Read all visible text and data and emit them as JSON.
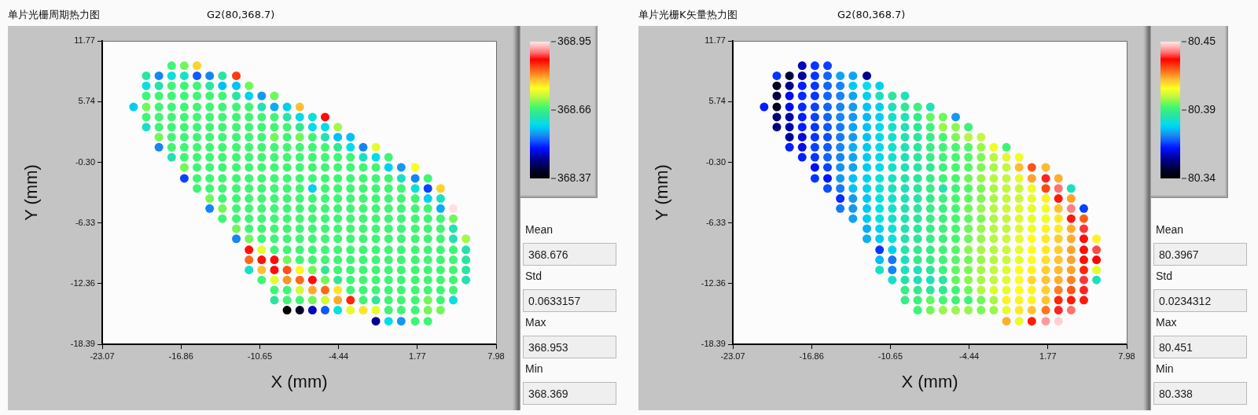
{
  "chart_data": [
    {
      "type": "scatter",
      "title": "单片光栅周期热力图",
      "subtitle": "G2(80,368.7)",
      "xlabel": "X (mm)",
      "ylabel": "Y (mm)",
      "xlim": [
        -23.07,
        7.98
      ],
      "xticks": [
        -23.07,
        -16.86,
        -10.65,
        -4.44,
        1.77,
        7.98
      ],
      "ylim": [
        -18.39,
        11.77
      ],
      "yticks": [
        -18.39,
        -12.36,
        -6.33,
        {
          "value": -0.3,
          "label": "-0.30"
        },
        5.74,
        11.77
      ],
      "clim": [
        368.369,
        368.953
      ],
      "cticks": [
        {
          "value": 368.369,
          "label": "368.37"
        },
        {
          "value": 368.661,
          "label": "368.66"
        },
        {
          "value": 368.953,
          "label": "368.95"
        }
      ],
      "marker": "circle",
      "annotations": [
        "Mean",
        "368.676",
        "Std",
        "0.0633157",
        "Max",
        "368.953",
        "Min",
        "368.369"
      ],
      "x": [
        -17.6,
        -16.6,
        -15.6,
        -19.6,
        -18.6,
        -17.6,
        -16.6,
        -15.6,
        -14.6,
        -13.6,
        -12.5,
        -19.6,
        -18.6,
        -17.6,
        -16.6,
        -15.6,
        -14.6,
        -13.6,
        -12.5,
        -11.5,
        -19.6,
        -18.6,
        -17.6,
        -16.6,
        -15.6,
        -14.6,
        -13.6,
        -12.5,
        -11.5,
        -10.5,
        -9.5,
        -20.6,
        -19.6,
        -18.6,
        -17.6,
        -16.6,
        -15.6,
        -14.6,
        -13.6,
        -12.5,
        -11.5,
        -10.5,
        -9.5,
        -8.5,
        -7.5,
        -19.6,
        -18.6,
        -17.6,
        -16.6,
        -15.6,
        -14.6,
        -13.6,
        -12.5,
        -11.5,
        -10.5,
        -9.5,
        -8.5,
        -7.5,
        -6.5,
        -5.5,
        -19.6,
        -18.6,
        -17.6,
        -16.6,
        -15.6,
        -14.6,
        -13.6,
        -12.5,
        -11.5,
        -10.5,
        -9.5,
        -8.5,
        -7.5,
        -6.5,
        -5.5,
        -4.5,
        -18.6,
        -17.6,
        -16.6,
        -15.6,
        -14.6,
        -13.6,
        -12.5,
        -11.5,
        -10.5,
        -9.5,
        -8.5,
        -7.5,
        -6.5,
        -5.5,
        -4.5,
        -3.5,
        -18.6,
        -17.6,
        -16.6,
        -15.6,
        -14.6,
        -13.6,
        -12.5,
        -11.5,
        -10.5,
        -9.5,
        -8.5,
        -7.5,
        -6.5,
        -5.5,
        -4.5,
        -3.5,
        -2.5,
        -1.5,
        -17.6,
        -16.6,
        -15.6,
        -14.6,
        -13.6,
        -12.5,
        -11.5,
        -10.5,
        -9.5,
        -8.5,
        -7.5,
        -6.5,
        -5.5,
        -4.5,
        -3.5,
        -2.5,
        -1.5,
        -0.5,
        -16.6,
        -15.6,
        -14.6,
        -13.6,
        -12.5,
        -11.5,
        -10.5,
        -9.5,
        -8.5,
        -7.5,
        -6.5,
        -5.5,
        -4.5,
        -3.5,
        -2.5,
        -1.5,
        -0.5,
        0.5,
        1.6,
        -16.6,
        -15.6,
        -14.6,
        -13.6,
        -12.5,
        -11.5,
        -10.5,
        -9.5,
        -8.5,
        -7.5,
        -6.5,
        -5.5,
        -4.5,
        -3.5,
        -2.5,
        -1.5,
        -0.5,
        0.5,
        1.6,
        2.6,
        -15.6,
        -14.6,
        -13.6,
        -12.5,
        -11.5,
        -10.5,
        -9.5,
        -8.5,
        -7.5,
        -6.5,
        -5.5,
        -4.5,
        -3.5,
        -2.5,
        -1.5,
        -0.5,
        0.5,
        1.6,
        2.6,
        3.6,
        -14.6,
        -13.6,
        -12.5,
        -11.5,
        -10.5,
        -9.5,
        -8.5,
        -7.5,
        -6.5,
        -5.5,
        -4.5,
        -3.5,
        -2.5,
        -1.5,
        -0.5,
        0.5,
        1.6,
        2.6,
        3.6,
        -14.6,
        -13.6,
        -12.5,
        -11.5,
        -10.5,
        -9.5,
        -8.5,
        -7.5,
        -6.5,
        -5.5,
        -4.5,
        -3.5,
        -2.5,
        -1.5,
        -0.5,
        0.5,
        1.6,
        2.6,
        3.6,
        4.6,
        -13.6,
        -12.5,
        -11.5,
        -10.5,
        -9.5,
        -8.5,
        -7.5,
        -6.5,
        -5.5,
        -4.5,
        -3.5,
        -2.5,
        -1.5,
        -0.5,
        0.5,
        1.6,
        2.6,
        3.6,
        4.6,
        -12.5,
        -11.5,
        -10.5,
        -9.5,
        -8.5,
        -7.5,
        -6.5,
        -5.5,
        -4.5,
        -3.5,
        -2.5,
        -1.5,
        -0.5,
        0.5,
        1.6,
        2.6,
        3.6,
        4.6,
        -12.5,
        -11.5,
        -10.5,
        -9.5,
        -8.5,
        -7.5,
        -6.5,
        -5.5,
        -4.5,
        -3.5,
        -2.5,
        -1.5,
        -0.5,
        0.5,
        1.6,
        2.6,
        3.6,
        4.6,
        5.6,
        -11.5,
        -10.5,
        -9.5,
        -8.5,
        -7.5,
        -6.5,
        -5.5,
        -4.5,
        -3.5,
        -2.5,
        -1.5,
        -0.5,
        0.5,
        1.6,
        2.6,
        3.6,
        4.6,
        5.6,
        -11.5,
        -10.5,
        -9.5,
        -8.5,
        -7.5,
        -6.5,
        -5.5,
        -4.5,
        -3.5,
        -2.5,
        -1.5,
        -0.5,
        0.5,
        1.6,
        2.6,
        3.6,
        4.6,
        5.6,
        -11.5,
        -10.5,
        -9.5,
        -8.5,
        -7.5,
        -6.5,
        -5.5,
        -4.5,
        -3.5,
        -2.5,
        -1.5,
        -0.5,
        0.5,
        1.6,
        2.6,
        3.6,
        4.6,
        5.6,
        -10.5,
        -9.5,
        -8.5,
        -7.5,
        -6.5,
        -5.5,
        -4.5,
        -3.5,
        -2.5,
        -1.5,
        -0.5,
        0.5,
        1.6,
        2.6,
        3.6,
        4.6,
        5.6,
        -9.5,
        -8.5,
        -7.5,
        -6.5,
        -5.5,
        -4.5,
        -3.5,
        -2.5,
        -1.5,
        -0.5,
        0.5,
        1.6,
        2.6,
        3.6,
        4.6,
        -9.5,
        -8.5,
        -7.5,
        -6.5,
        -5.5,
        -4.5,
        -3.5,
        -2.5,
        -1.5,
        -0.5,
        0.5,
        1.6,
        2.6,
        3.6,
        4.6,
        -8.5,
        -7.5,
        -6.5,
        -5.5,
        -4.5,
        -3.5,
        -2.5,
        -1.5,
        -0.5,
        0.5,
        1.6,
        2.6,
        3.6,
        -1.5,
        -0.5,
        0.5,
        1.6,
        2.6
      ],
      "values": [
        9.3,
        9.3,
        9.3,
        8.3,
        8.3,
        8.3,
        8.3,
        8.3,
        8.3,
        8.3,
        8.3,
        7.3,
        7.3,
        7.3,
        7.3,
        7.3,
        7.3,
        7.3,
        7.3,
        7.3,
        6.3,
        6.3,
        6.3,
        6.3,
        6.3,
        6.3,
        6.3,
        6.3,
        6.3,
        6.3,
        6.3,
        5.2,
        5.2,
        5.2,
        5.2,
        5.2,
        5.2,
        5.2,
        5.2,
        5.2,
        5.2,
        5.2,
        5.2,
        5.2,
        5.2,
        4.2,
        4.2,
        4.2,
        4.2,
        4.2,
        4.2,
        4.2,
        4.2,
        4.2,
        4.2,
        4.2,
        4.2,
        4.2,
        4.2,
        4.2,
        3.2,
        3.2,
        3.2,
        3.2,
        3.2,
        3.2,
        3.2,
        3.2,
        3.2,
        3.2,
        3.2,
        3.2,
        3.2,
        3.2,
        3.2,
        3.2,
        2.2,
        2.2,
        2.2,
        2.2,
        2.2,
        2.2,
        2.2,
        2.2,
        2.2,
        2.2,
        2.2,
        2.2,
        2.2,
        2.2,
        2.2,
        2.2,
        1.2,
        1.2,
        1.2,
        1.2,
        1.2,
        1.2,
        1.2,
        1.2,
        1.2,
        1.2,
        1.2,
        1.2,
        1.2,
        1.2,
        1.2,
        1.2,
        1.2,
        1.2,
        0.2,
        0.2,
        0.2,
        0.2,
        0.2,
        0.2,
        0.2,
        0.2,
        0.2,
        0.2,
        0.2,
        0.2,
        0.2,
        0.2,
        0.2,
        0.2,
        0.2,
        0.2,
        -0.8,
        -0.8,
        -0.8,
        -0.8,
        -0.8,
        -0.8,
        -0.8,
        -0.8,
        -0.8,
        -0.8,
        -0.8,
        -0.8,
        -0.8,
        -0.8,
        -0.8,
        -0.8,
        -0.8,
        -0.8,
        -0.8,
        -1.9,
        -1.9,
        -1.9,
        -1.9,
        -1.9,
        -1.9,
        -1.9,
        -1.9,
        -1.9,
        -1.9,
        -1.9,
        -1.9,
        -1.9,
        -1.9,
        -1.9,
        -1.9,
        -1.9,
        -1.9,
        -1.9,
        -1.9,
        -2.9,
        -2.9,
        -2.9,
        -2.9,
        -2.9,
        -2.9,
        -2.9,
        -2.9,
        -2.9,
        -2.9,
        -2.9,
        -2.9,
        -2.9,
        -2.9,
        -2.9,
        -2.9,
        -2.9,
        -2.9,
        -2.9,
        -2.9,
        -3.9,
        -3.9,
        -3.9,
        -3.9,
        -3.9,
        -3.9,
        -3.9,
        -3.9,
        -3.9,
        -3.9,
        -3.9,
        -3.9,
        -3.9,
        -3.9,
        -3.9,
        -3.9,
        -3.9,
        -3.9,
        -3.9,
        -4.9,
        -4.9,
        -4.9,
        -4.9,
        -4.9,
        -4.9,
        -4.9,
        -4.9,
        -4.9,
        -4.9,
        -4.9,
        -4.9,
        -4.9,
        -4.9,
        -4.9,
        -4.9,
        -4.9,
        -4.9,
        -4.9,
        -4.9,
        -5.9,
        -5.9,
        -5.9,
        -5.9,
        -5.9,
        -5.9,
        -5.9,
        -5.9,
        -5.9,
        -5.9,
        -5.9,
        -5.9,
        -5.9,
        -5.9,
        -5.9,
        -5.9,
        -5.9,
        -5.9,
        -5.9,
        -6.9,
        -6.9,
        -6.9,
        -6.9,
        -6.9,
        -6.9,
        -6.9,
        -6.9,
        -6.9,
        -6.9,
        -6.9,
        -6.9,
        -6.9,
        -6.9,
        -6.9,
        -6.9,
        -6.9,
        -6.9,
        -7.9,
        -7.9,
        -7.9,
        -7.9,
        -7.9,
        -7.9,
        -7.9,
        -7.9,
        -7.9,
        -7.9,
        -7.9,
        -7.9,
        -7.9,
        -7.9,
        -7.9,
        -7.9,
        -7.9,
        -7.9,
        -7.9,
        -9.0,
        -9.0,
        -9.0,
        -9.0,
        -9.0,
        -9.0,
        -9.0,
        -9.0,
        -9.0,
        -9.0,
        -9.0,
        -9.0,
        -9.0,
        -9.0,
        -9.0,
        -9.0,
        -9.0,
        -9.0,
        -10.0,
        -10.0,
        -10.0,
        -10.0,
        -10.0,
        -10.0,
        -10.0,
        -10.0,
        -10.0,
        -10.0,
        -10.0,
        -10.0,
        -10.0,
        -10.0,
        -10.0,
        -10.0,
        -10.0,
        -10.0,
        -11.0,
        -11.0,
        -11.0,
        -11.0,
        -11.0,
        -11.0,
        -11.0,
        -11.0,
        -11.0,
        -11.0,
        -11.0,
        -11.0,
        -11.0,
        -11.0,
        -11.0,
        -11.0,
        -11.0,
        -11.0,
        -12.0,
        -12.0,
        -12.0,
        -12.0,
        -12.0,
        -12.0,
        -12.0,
        -12.0,
        -12.0,
        -12.0,
        -12.0,
        -12.0,
        -12.0,
        -12.0,
        -12.0,
        -12.0,
        -12.0,
        -13.0,
        -13.0,
        -13.0,
        -13.0,
        -13.0,
        -13.0,
        -13.0,
        -13.0,
        -13.0,
        -13.0,
        -13.0,
        -13.0,
        -13.0,
        -13.0,
        -13.0,
        -14.0,
        -14.0,
        -14.0,
        -14.0,
        -14.0,
        -14.0,
        -14.0,
        -14.0,
        -14.0,
        -14.0,
        -14.0,
        -14.0,
        -14.0,
        -14.0,
        -14.0,
        -15.0,
        -15.0,
        -15.0,
        -15.0,
        -15.0,
        -15.0,
        -15.0,
        -15.0,
        -15.0,
        -15.0,
        -15.0,
        -15.0,
        -15.0,
        -16.1,
        -16.1,
        -16.1,
        -16.1,
        -16.1
      ],
      "cvalues": [
        368.67,
        368.69,
        368.78,
        368.64,
        368.55,
        368.61,
        368.62,
        368.53,
        368.55,
        368.64,
        368.85,
        368.61,
        368.63,
        368.67,
        368.67,
        368.67,
        368.64,
        368.58,
        368.58,
        368.69,
        368.67,
        368.67,
        368.67,
        368.67,
        368.67,
        368.67,
        368.67,
        368.64,
        368.59,
        368.56,
        368.69,
        368.59,
        368.69,
        368.67,
        368.67,
        368.67,
        368.67,
        368.67,
        368.67,
        368.67,
        368.67,
        368.63,
        368.57,
        368.59,
        368.79,
        368.67,
        368.67,
        368.67,
        368.67,
        368.67,
        368.67,
        368.67,
        368.67,
        368.67,
        368.67,
        368.67,
        368.64,
        368.6,
        368.61,
        368.88,
        368.62,
        368.67,
        368.67,
        368.67,
        368.67,
        368.67,
        368.67,
        368.67,
        368.67,
        368.67,
        368.67,
        368.67,
        368.65,
        368.6,
        368.6,
        368.71,
        368.69,
        368.67,
        368.67,
        368.67,
        368.67,
        368.67,
        368.67,
        368.67,
        368.67,
        368.69,
        368.67,
        368.69,
        368.67,
        368.63,
        368.58,
        368.58,
        368.55,
        368.67,
        368.67,
        368.67,
        368.67,
        368.67,
        368.67,
        368.67,
        368.67,
        368.67,
        368.67,
        368.67,
        368.67,
        368.67,
        368.65,
        368.6,
        368.55,
        368.74,
        368.63,
        368.67,
        368.67,
        368.67,
        368.67,
        368.67,
        368.67,
        368.67,
        368.67,
        368.67,
        368.67,
        368.67,
        368.67,
        368.67,
        368.67,
        368.62,
        368.6,
        368.67,
        368.69,
        368.67,
        368.67,
        368.67,
        368.67,
        368.67,
        368.67,
        368.67,
        368.67,
        368.67,
        368.67,
        368.67,
        368.67,
        368.67,
        368.67,
        368.67,
        368.59,
        368.56,
        368.75,
        368.52,
        368.67,
        368.67,
        368.67,
        368.67,
        368.67,
        368.67,
        368.67,
        368.67,
        368.67,
        368.67,
        368.67,
        368.67,
        368.67,
        368.67,
        368.67,
        368.67,
        368.62,
        368.55,
        368.67,
        368.67,
        368.67,
        368.67,
        368.67,
        368.67,
        368.67,
        368.67,
        368.67,
        368.67,
        368.59,
        368.67,
        368.67,
        368.67,
        368.67,
        368.67,
        368.67,
        368.67,
        368.61,
        368.52,
        368.78,
        368.69,
        368.67,
        368.67,
        368.67,
        368.67,
        368.67,
        368.67,
        368.67,
        368.67,
        368.67,
        368.67,
        368.67,
        368.67,
        368.67,
        368.67,
        368.67,
        368.67,
        368.59,
        368.62,
        368.55,
        368.69,
        368.67,
        368.67,
        368.67,
        368.67,
        368.67,
        368.67,
        368.67,
        368.67,
        368.67,
        368.67,
        368.67,
        368.67,
        368.67,
        368.67,
        368.67,
        368.67,
        368.57,
        368.95,
        368.67,
        368.67,
        368.67,
        368.67,
        368.67,
        368.67,
        368.67,
        368.67,
        368.67,
        368.67,
        368.67,
        368.67,
        368.67,
        368.67,
        368.67,
        368.67,
        368.67,
        368.67,
        368.69,
        368.69,
        368.67,
        368.67,
        368.67,
        368.67,
        368.67,
        368.67,
        368.67,
        368.67,
        368.67,
        368.67,
        368.67,
        368.67,
        368.67,
        368.67,
        368.67,
        368.67,
        368.63,
        368.55,
        368.69,
        368.67,
        368.67,
        368.67,
        368.67,
        368.67,
        368.67,
        368.67,
        368.67,
        368.67,
        368.67,
        368.67,
        368.67,
        368.67,
        368.67,
        368.67,
        368.63,
        368.71,
        368.87,
        368.74,
        368.67,
        368.67,
        368.67,
        368.67,
        368.67,
        368.67,
        368.67,
        368.67,
        368.67,
        368.67,
        368.67,
        368.67,
        368.67,
        368.67,
        368.67,
        368.63,
        368.83,
        368.87,
        368.88,
        368.69,
        368.67,
        368.67,
        368.67,
        368.67,
        368.67,
        368.67,
        368.67,
        368.67,
        368.67,
        368.67,
        368.67,
        368.67,
        368.67,
        368.64,
        368.62,
        368.79,
        368.88,
        368.84,
        368.76,
        368.69,
        368.65,
        368.67,
        368.67,
        368.67,
        368.67,
        368.67,
        368.67,
        368.67,
        368.67,
        368.67,
        368.67,
        368.64,
        368.67,
        368.74,
        368.81,
        368.83,
        368.88,
        368.69,
        368.65,
        368.67,
        368.67,
        368.67,
        368.67,
        368.67,
        368.67,
        368.67,
        368.67,
        368.67,
        368.63,
        368.67,
        368.67,
        368.73,
        368.8,
        368.83,
        368.77,
        368.67,
        368.67,
        368.67,
        368.67,
        368.67,
        368.67,
        368.67,
        368.67,
        368.67,
        368.64,
        368.67,
        368.67,
        368.69,
        368.73,
        368.8,
        368.86,
        368.67,
        368.65,
        368.67,
        368.67,
        368.67,
        368.69,
        368.67,
        368.61,
        368.37,
        368.4,
        368.47,
        368.53,
        368.61,
        368.74,
        368.77,
        368.74,
        368.67,
        368.67,
        368.67,
        368.69,
        368.69,
        368.45,
        368.6,
        368.56,
        368.67,
        368.67
      ]
    },
    {
      "type": "scatter",
      "title": "单片光栅K矢量热力图",
      "subtitle": "G2(80,368.7)",
      "xlabel": "X (mm)",
      "ylabel": "Y (mm)",
      "xlim": [
        -23.07,
        7.98
      ],
      "xticks": [
        -23.07,
        -16.86,
        -10.65,
        -4.44,
        1.77,
        7.98
      ],
      "ylim": [
        -18.39,
        11.77
      ],
      "yticks": [
        -18.39,
        -12.36,
        -6.33,
        {
          "value": -0.3,
          "label": "-0.30"
        },
        5.74,
        11.77
      ],
      "clim": [
        80.338,
        80.451
      ],
      "cticks": [
        {
          "value": 80.338,
          "label": "80.34"
        },
        {
          "value": 80.3945,
          "label": "80.39"
        },
        {
          "value": 80.451,
          "label": "80.45"
        }
      ],
      "marker": "circle",
      "annotations": [
        "Mean",
        "80.3967",
        "Std",
        "0.0234312",
        "Max",
        "80.451",
        "Min",
        "80.338"
      ],
      "x": [
        -17.6,
        -16.6,
        -15.6,
        -19.6,
        -18.6,
        -17.6,
        -16.6,
        -15.6,
        -14.6,
        -13.6,
        -12.5,
        -19.6,
        -18.6,
        -17.6,
        -16.6,
        -15.6,
        -14.6,
        -13.6,
        -12.5,
        -11.5,
        -19.6,
        -18.6,
        -17.6,
        -16.6,
        -15.6,
        -14.6,
        -13.6,
        -12.5,
        -11.5,
        -10.5,
        -9.5,
        -20.6,
        -19.6,
        -18.6,
        -17.6,
        -16.6,
        -15.6,
        -14.6,
        -13.6,
        -12.5,
        -11.5,
        -10.5,
        -9.5,
        -8.5,
        -7.5,
        -19.6,
        -18.6,
        -17.6,
        -16.6,
        -15.6,
        -14.6,
        -13.6,
        -12.5,
        -11.5,
        -10.5,
        -9.5,
        -8.5,
        -7.5,
        -6.5,
        -5.5,
        -19.6,
        -18.6,
        -17.6,
        -16.6,
        -15.6,
        -14.6,
        -13.6,
        -12.5,
        -11.5,
        -10.5,
        -9.5,
        -8.5,
        -7.5,
        -6.5,
        -5.5,
        -4.5,
        -18.6,
        -17.6,
        -16.6,
        -15.6,
        -14.6,
        -13.6,
        -12.5,
        -11.5,
        -10.5,
        -9.5,
        -8.5,
        -7.5,
        -6.5,
        -5.5,
        -4.5,
        -3.5,
        -18.6,
        -17.6,
        -16.6,
        -15.6,
        -14.6,
        -13.6,
        -12.5,
        -11.5,
        -10.5,
        -9.5,
        -8.5,
        -7.5,
        -6.5,
        -5.5,
        -4.5,
        -3.5,
        -2.5,
        -1.5,
        -17.6,
        -16.6,
        -15.6,
        -14.6,
        -13.6,
        -12.5,
        -11.5,
        -10.5,
        -9.5,
        -8.5,
        -7.5,
        -6.5,
        -5.5,
        -4.5,
        -3.5,
        -2.5,
        -1.5,
        -0.5,
        -16.6,
        -15.6,
        -14.6,
        -13.6,
        -12.5,
        -11.5,
        -10.5,
        -9.5,
        -8.5,
        -7.5,
        -6.5,
        -5.5,
        -4.5,
        -3.5,
        -2.5,
        -1.5,
        -0.5,
        0.5,
        1.6,
        -16.6,
        -15.6,
        -14.6,
        -13.6,
        -12.5,
        -11.5,
        -10.5,
        -9.5,
        -8.5,
        -7.5,
        -6.5,
        -5.5,
        -4.5,
        -3.5,
        -2.5,
        -1.5,
        -0.5,
        0.5,
        1.6,
        2.6,
        -15.6,
        -14.6,
        -13.6,
        -12.5,
        -11.5,
        -10.5,
        -9.5,
        -8.5,
        -7.5,
        -6.5,
        -5.5,
        -4.5,
        -3.5,
        -2.5,
        -1.5,
        -0.5,
        0.5,
        1.6,
        2.6,
        3.6,
        -14.6,
        -13.6,
        -12.5,
        -11.5,
        -10.5,
        -9.5,
        -8.5,
        -7.5,
        -6.5,
        -5.5,
        -4.5,
        -3.5,
        -2.5,
        -1.5,
        -0.5,
        0.5,
        1.6,
        2.6,
        3.6,
        -14.6,
        -13.6,
        -12.5,
        -11.5,
        -10.5,
        -9.5,
        -8.5,
        -7.5,
        -6.5,
        -5.5,
        -4.5,
        -3.5,
        -2.5,
        -1.5,
        -0.5,
        0.5,
        1.6,
        2.6,
        3.6,
        4.6,
        -13.6,
        -12.5,
        -11.5,
        -10.5,
        -9.5,
        -8.5,
        -7.5,
        -6.5,
        -5.5,
        -4.5,
        -3.5,
        -2.5,
        -1.5,
        -0.5,
        0.5,
        1.6,
        2.6,
        3.6,
        4.6,
        -12.5,
        -11.5,
        -10.5,
        -9.5,
        -8.5,
        -7.5,
        -6.5,
        -5.5,
        -4.5,
        -3.5,
        -2.5,
        -1.5,
        -0.5,
        0.5,
        1.6,
        2.6,
        3.6,
        4.6,
        -12.5,
        -11.5,
        -10.5,
        -9.5,
        -8.5,
        -7.5,
        -6.5,
        -5.5,
        -4.5,
        -3.5,
        -2.5,
        -1.5,
        -0.5,
        0.5,
        1.6,
        2.6,
        3.6,
        4.6,
        5.6,
        -11.5,
        -10.5,
        -9.5,
        -8.5,
        -7.5,
        -6.5,
        -5.5,
        -4.5,
        -3.5,
        -2.5,
        -1.5,
        -0.5,
        0.5,
        1.6,
        2.6,
        3.6,
        4.6,
        5.6,
        -11.5,
        -10.5,
        -9.5,
        -8.5,
        -7.5,
        -6.5,
        -5.5,
        -4.5,
        -3.5,
        -2.5,
        -1.5,
        -0.5,
        0.5,
        1.6,
        2.6,
        3.6,
        4.6,
        5.6,
        -11.5,
        -10.5,
        -9.5,
        -8.5,
        -7.5,
        -6.5,
        -5.5,
        -4.5,
        -3.5,
        -2.5,
        -1.5,
        -0.5,
        0.5,
        1.6,
        2.6,
        3.6,
        4.6,
        5.6,
        -10.5,
        -9.5,
        -8.5,
        -7.5,
        -6.5,
        -5.5,
        -4.5,
        -3.5,
        -2.5,
        -1.5,
        -0.5,
        0.5,
        1.6,
        2.6,
        3.6,
        4.6,
        5.6,
        -9.5,
        -8.5,
        -7.5,
        -6.5,
        -5.5,
        -4.5,
        -3.5,
        -2.5,
        -1.5,
        -0.5,
        0.5,
        1.6,
        2.6,
        3.6,
        4.6,
        -9.5,
        -8.5,
        -7.5,
        -6.5,
        -5.5,
        -4.5,
        -3.5,
        -2.5,
        -1.5,
        -0.5,
        0.5,
        1.6,
        2.6,
        3.6,
        4.6,
        -8.5,
        -7.5,
        -6.5,
        -5.5,
        -4.5,
        -3.5,
        -2.5,
        -1.5,
        -0.5,
        0.5,
        1.6,
        2.6,
        3.6,
        -1.5,
        -0.5,
        0.5,
        1.6,
        2.6
      ],
      "values": [
        9.3,
        9.3,
        9.3,
        8.3,
        8.3,
        8.3,
        8.3,
        8.3,
        8.3,
        8.3,
        8.3,
        7.3,
        7.3,
        7.3,
        7.3,
        7.3,
        7.3,
        7.3,
        7.3,
        7.3,
        6.3,
        6.3,
        6.3,
        6.3,
        6.3,
        6.3,
        6.3,
        6.3,
        6.3,
        6.3,
        6.3,
        5.2,
        5.2,
        5.2,
        5.2,
        5.2,
        5.2,
        5.2,
        5.2,
        5.2,
        5.2,
        5.2,
        5.2,
        5.2,
        5.2,
        4.2,
        4.2,
        4.2,
        4.2,
        4.2,
        4.2,
        4.2,
        4.2,
        4.2,
        4.2,
        4.2,
        4.2,
        4.2,
        4.2,
        4.2,
        3.2,
        3.2,
        3.2,
        3.2,
        3.2,
        3.2,
        3.2,
        3.2,
        3.2,
        3.2,
        3.2,
        3.2,
        3.2,
        3.2,
        3.2,
        3.2,
        2.2,
        2.2,
        2.2,
        2.2,
        2.2,
        2.2,
        2.2,
        2.2,
        2.2,
        2.2,
        2.2,
        2.2,
        2.2,
        2.2,
        2.2,
        2.2,
        1.2,
        1.2,
        1.2,
        1.2,
        1.2,
        1.2,
        1.2,
        1.2,
        1.2,
        1.2,
        1.2,
        1.2,
        1.2,
        1.2,
        1.2,
        1.2,
        1.2,
        1.2,
        0.2,
        0.2,
        0.2,
        0.2,
        0.2,
        0.2,
        0.2,
        0.2,
        0.2,
        0.2,
        0.2,
        0.2,
        0.2,
        0.2,
        0.2,
        0.2,
        0.2,
        0.2,
        -0.8,
        -0.8,
        -0.8,
        -0.8,
        -0.8,
        -0.8,
        -0.8,
        -0.8,
        -0.8,
        -0.8,
        -0.8,
        -0.8,
        -0.8,
        -0.8,
        -0.8,
        -0.8,
        -0.8,
        -0.8,
        -0.8,
        -1.9,
        -1.9,
        -1.9,
        -1.9,
        -1.9,
        -1.9,
        -1.9,
        -1.9,
        -1.9,
        -1.9,
        -1.9,
        -1.9,
        -1.9,
        -1.9,
        -1.9,
        -1.9,
        -1.9,
        -1.9,
        -1.9,
        -1.9,
        -2.9,
        -2.9,
        -2.9,
        -2.9,
        -2.9,
        -2.9,
        -2.9,
        -2.9,
        -2.9,
        -2.9,
        -2.9,
        -2.9,
        -2.9,
        -2.9,
        -2.9,
        -2.9,
        -2.9,
        -2.9,
        -2.9,
        -2.9,
        -3.9,
        -3.9,
        -3.9,
        -3.9,
        -3.9,
        -3.9,
        -3.9,
        -3.9,
        -3.9,
        -3.9,
        -3.9,
        -3.9,
        -3.9,
        -3.9,
        -3.9,
        -3.9,
        -3.9,
        -3.9,
        -3.9,
        -4.9,
        -4.9,
        -4.9,
        -4.9,
        -4.9,
        -4.9,
        -4.9,
        -4.9,
        -4.9,
        -4.9,
        -4.9,
        -4.9,
        -4.9,
        -4.9,
        -4.9,
        -4.9,
        -4.9,
        -4.9,
        -4.9,
        -4.9,
        -5.9,
        -5.9,
        -5.9,
        -5.9,
        -5.9,
        -5.9,
        -5.9,
        -5.9,
        -5.9,
        -5.9,
        -5.9,
        -5.9,
        -5.9,
        -5.9,
        -5.9,
        -5.9,
        -5.9,
        -5.9,
        -5.9,
        -6.9,
        -6.9,
        -6.9,
        -6.9,
        -6.9,
        -6.9,
        -6.9,
        -6.9,
        -6.9,
        -6.9,
        -6.9,
        -6.9,
        -6.9,
        -6.9,
        -6.9,
        -6.9,
        -6.9,
        -6.9,
        -7.9,
        -7.9,
        -7.9,
        -7.9,
        -7.9,
        -7.9,
        -7.9,
        -7.9,
        -7.9,
        -7.9,
        -7.9,
        -7.9,
        -7.9,
        -7.9,
        -7.9,
        -7.9,
        -7.9,
        -7.9,
        -7.9,
        -9.0,
        -9.0,
        -9.0,
        -9.0,
        -9.0,
        -9.0,
        -9.0,
        -9.0,
        -9.0,
        -9.0,
        -9.0,
        -9.0,
        -9.0,
        -9.0,
        -9.0,
        -9.0,
        -9.0,
        -9.0,
        -10.0,
        -10.0,
        -10.0,
        -10.0,
        -10.0,
        -10.0,
        -10.0,
        -10.0,
        -10.0,
        -10.0,
        -10.0,
        -10.0,
        -10.0,
        -10.0,
        -10.0,
        -10.0,
        -10.0,
        -10.0,
        -11.0,
        -11.0,
        -11.0,
        -11.0,
        -11.0,
        -11.0,
        -11.0,
        -11.0,
        -11.0,
        -11.0,
        -11.0,
        -11.0,
        -11.0,
        -11.0,
        -11.0,
        -11.0,
        -11.0,
        -11.0,
        -12.0,
        -12.0,
        -12.0,
        -12.0,
        -12.0,
        -12.0,
        -12.0,
        -12.0,
        -12.0,
        -12.0,
        -12.0,
        -12.0,
        -12.0,
        -12.0,
        -12.0,
        -12.0,
        -12.0,
        -13.0,
        -13.0,
        -13.0,
        -13.0,
        -13.0,
        -13.0,
        -13.0,
        -13.0,
        -13.0,
        -13.0,
        -13.0,
        -13.0,
        -13.0,
        -13.0,
        -13.0,
        -14.0,
        -14.0,
        -14.0,
        -14.0,
        -14.0,
        -14.0,
        -14.0,
        -14.0,
        -14.0,
        -14.0,
        -14.0,
        -14.0,
        -14.0,
        -14.0,
        -14.0,
        -15.0,
        -15.0,
        -15.0,
        -15.0,
        -15.0,
        -15.0,
        -15.0,
        -15.0,
        -15.0,
        -15.0,
        -15.0,
        -15.0,
        -15.0,
        -16.1,
        -16.1,
        -16.1,
        -16.1,
        -16.1
      ],
      "cvalues": [
        80.357,
        80.366,
        80.367,
        80.366,
        80.346,
        80.355,
        80.366,
        80.37,
        80.376,
        80.376,
        80.354,
        80.342,
        80.353,
        80.364,
        80.366,
        80.37,
        80.373,
        80.38,
        80.383,
        80.381,
        80.347,
        80.361,
        80.365,
        80.366,
        80.37,
        80.373,
        80.376,
        80.381,
        80.387,
        80.391,
        80.388,
        80.364,
        80.343,
        80.361,
        80.365,
        80.367,
        80.37,
        80.373,
        80.375,
        80.379,
        80.381,
        80.388,
        80.392,
        80.395,
        80.388,
        80.352,
        80.356,
        80.364,
        80.367,
        80.37,
        80.373,
        80.375,
        80.378,
        80.381,
        80.386,
        80.388,
        80.393,
        80.399,
        80.4,
        80.375,
        80.352,
        80.356,
        80.364,
        80.366,
        80.369,
        80.372,
        80.376,
        80.379,
        80.382,
        80.386,
        80.388,
        80.391,
        80.396,
        80.403,
        80.402,
        80.395,
        80.355,
        80.36,
        80.366,
        80.368,
        80.372,
        80.375,
        80.379,
        80.382,
        80.386,
        80.389,
        80.391,
        80.394,
        80.397,
        80.401,
        80.405,
        80.406,
        80.364,
        80.361,
        80.367,
        80.369,
        80.373,
        80.377,
        80.38,
        80.382,
        80.386,
        80.388,
        80.391,
        80.394,
        80.396,
        80.397,
        80.398,
        80.403,
        80.411,
        80.396,
        80.364,
        80.366,
        80.37,
        80.373,
        80.376,
        80.38,
        80.382,
        80.386,
        80.388,
        80.391,
        80.394,
        80.396,
        80.397,
        80.398,
        80.401,
        80.405,
        80.409,
        80.411,
        80.362,
        80.367,
        80.374,
        80.376,
        80.38,
        80.382,
        80.386,
        80.388,
        80.39,
        80.392,
        80.395,
        80.397,
        80.398,
        80.401,
        80.404,
        80.406,
        80.42,
        80.429,
        80.42,
        80.366,
        80.363,
        80.375,
        80.379,
        80.381,
        80.385,
        80.387,
        80.39,
        80.391,
        80.394,
        80.396,
        80.397,
        80.4,
        80.403,
        80.405,
        80.406,
        80.41,
        80.422,
        80.438,
        80.421,
        80.368,
        80.372,
        80.379,
        80.381,
        80.385,
        80.387,
        80.388,
        80.391,
        80.394,
        80.389,
        80.396,
        80.398,
        80.401,
        80.404,
        80.406,
        80.407,
        80.411,
        80.43,
        80.442,
        80.387,
        80.365,
        80.375,
        80.38,
        80.384,
        80.386,
        80.388,
        80.39,
        80.393,
        80.395,
        80.397,
        80.399,
        80.401,
        80.404,
        80.406,
        80.407,
        80.41,
        80.414,
        80.434,
        80.422,
        80.372,
        80.375,
        80.38,
        80.384,
        80.386,
        80.389,
        80.391,
        80.394,
        80.395,
        80.397,
        80.4,
        80.403,
        80.405,
        80.407,
        80.409,
        80.41,
        80.411,
        80.419,
        80.443,
        80.367,
        80.376,
        80.38,
        80.384,
        80.386,
        80.389,
        80.391,
        80.394,
        80.395,
        80.397,
        80.399,
        80.401,
        80.404,
        80.406,
        80.409,
        80.41,
        80.411,
        80.415,
        80.434,
        80.428,
        80.377,
        80.381,
        80.385,
        80.389,
        80.391,
        80.394,
        80.395,
        80.397,
        80.4,
        80.403,
        80.405,
        80.406,
        80.409,
        80.411,
        80.414,
        80.415,
        80.421,
        80.439,
        80.377,
        80.38,
        80.385,
        80.389,
        80.391,
        80.394,
        80.395,
        80.397,
        80.4,
        80.403,
        80.405,
        80.407,
        80.41,
        80.413,
        80.415,
        80.418,
        80.421,
        80.435,
        80.414,
        80.366,
        80.381,
        80.39,
        80.393,
        80.394,
        80.396,
        80.398,
        80.402,
        80.404,
        80.405,
        80.407,
        80.41,
        80.413,
        80.415,
        80.418,
        80.422,
        80.435,
        80.44,
        80.378,
        80.372,
        80.387,
        80.393,
        80.394,
        80.396,
        80.398,
        80.4,
        80.403,
        80.405,
        80.407,
        80.41,
        80.413,
        80.416,
        80.419,
        80.422,
        80.435,
        80.436,
        80.386,
        80.373,
        80.387,
        80.388,
        80.391,
        80.395,
        80.399,
        80.401,
        80.404,
        80.406,
        80.409,
        80.413,
        80.414,
        80.418,
        80.42,
        80.422,
        80.433,
        80.41,
        80.386,
        80.389,
        80.388,
        80.388,
        80.391,
        80.399,
        80.402,
        80.404,
        80.406,
        80.409,
        80.413,
        80.417,
        80.419,
        80.421,
        80.425,
        80.439,
        80.387,
        80.394,
        80.393,
        80.391,
        80.392,
        80.396,
        80.4,
        80.405,
        80.409,
        80.41,
        80.413,
        80.414,
        80.418,
        80.425,
        80.429,
        80.438,
        80.394,
        80.395,
        80.399,
        80.397,
        80.396,
        80.396,
        80.4,
        80.404,
        80.414,
        80.414,
        80.414,
        80.419,
        80.433,
        80.434,
        80.434,
        80.396,
        80.4,
        80.403,
        80.403,
        80.403,
        80.401,
        80.403,
        80.41,
        80.415,
        80.419,
        80.426,
        80.438,
        80.442,
        80.421,
        80.41,
        80.434,
        80.445,
        80.449
      ]
    }
  ]
}
